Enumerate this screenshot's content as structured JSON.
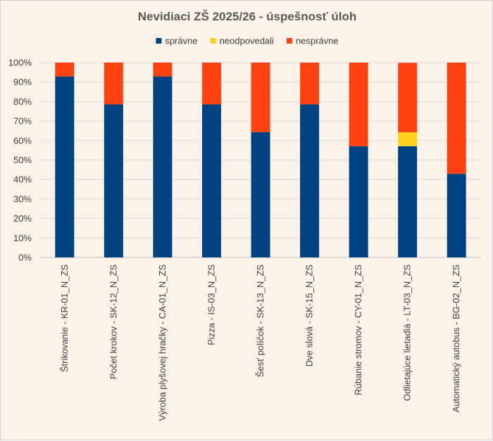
{
  "chart_data": {
    "type": "bar",
    "stacked": true,
    "title": "Nevidiaci ZŠ 2025/26 - úspešnosť úloh",
    "xlabel": "",
    "ylabel": "",
    "ylim": [
      0,
      100
    ],
    "grid": true,
    "legend_position": "top",
    "y_ticks": [
      "0%",
      "10%",
      "20%",
      "30%",
      "40%",
      "50%",
      "60%",
      "70%",
      "80%",
      "90%",
      "100%"
    ],
    "categories": [
      "Štrikovanie - KR-01_N_ZS",
      "Počet krokov - SK-12_N_ZS",
      "Výroba plyšovej hračky - CA-01_N_ZS",
      "Pizza - IS-03_N_ZS",
      "Šesť políčok - SK-13_N_ZS",
      "Dve slová - SK-15_N_ZS",
      "Rúbanie stromov - CY-01_N_ZS",
      "Odlietajúce lietadlá - LT-03_N_ZS",
      "Automatický autobus - BG-02_N_ZS"
    ],
    "series": [
      {
        "name": "správne",
        "color": "#00427f",
        "values": [
          92.9,
          78.6,
          92.9,
          78.6,
          64.3,
          78.6,
          57.1,
          57.1,
          42.9
        ]
      },
      {
        "name": "neodpovedali",
        "color": "#ffd21f",
        "values": [
          0,
          0,
          0,
          0,
          0,
          0,
          0,
          7.1,
          0
        ]
      },
      {
        "name": "nesprávne",
        "color": "#ff4210",
        "values": [
          7.1,
          21.4,
          7.1,
          21.4,
          35.7,
          21.4,
          42.9,
          35.7,
          57.1
        ]
      }
    ]
  }
}
